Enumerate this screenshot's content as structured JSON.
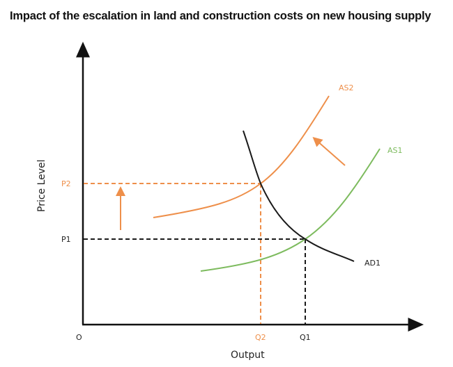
{
  "title": "Impact of the escalation in land and construction costs on new housing supply",
  "axes": {
    "y_label": "Price Level",
    "x_label": "Output",
    "origin_label": "O"
  },
  "price_levels": {
    "p1": "P1",
    "p2": "P2"
  },
  "outputs": {
    "q1": "Q1",
    "q2": "Q2"
  },
  "curves": {
    "as1": {
      "label": "AS1",
      "color": "#7dbb5e"
    },
    "as2": {
      "label": "AS2",
      "color": "#ee8f4a"
    },
    "ad1": {
      "label": "AD1",
      "color": "#1a1a1a"
    }
  },
  "annotations": {
    "upward_shift_arrow": "arrow-up",
    "leftward_shift_arrow": "arrow-up-left"
  }
}
